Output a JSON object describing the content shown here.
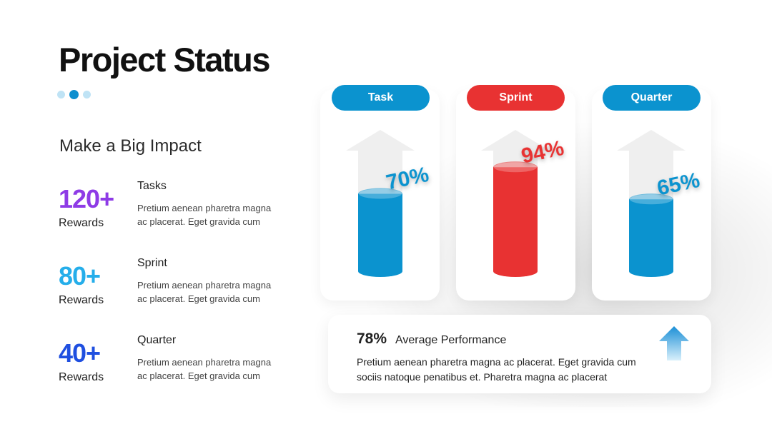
{
  "title": "Project Status",
  "subtitle": "Make a Big Impact",
  "stats": [
    {
      "value": "120+",
      "unit": "Rewards",
      "heading": "Tasks",
      "description": "Pretium aenean pharetra magna ac placerat. Eget gravida cum",
      "color": "#8e3be6"
    },
    {
      "value": "80+",
      "unit": "Rewards",
      "heading": "Sprint",
      "description": "Pretium aenean pharetra magna ac placerat. Eget gravida cum",
      "color": "#25aeea"
    },
    {
      "value": "40+",
      "unit": "Rewards",
      "heading": "Quarter",
      "description": "Pretium aenean pharetra magna ac placerat. Eget gravida cum",
      "color": "#1f4fe0"
    }
  ],
  "chart_data": {
    "type": "bar",
    "categories": [
      "Task",
      "Sprint",
      "Quarter"
    ],
    "values": [
      70,
      94,
      65
    ],
    "labels": [
      "70%",
      "94%",
      "65%"
    ],
    "colors": [
      "#0b93cf",
      "#e83232",
      "#0b93cf"
    ]
  },
  "performance": {
    "percent": "78%",
    "label": "Average Performance",
    "text": "Pretium aenean pharetra magna ac placerat. Eget gravida cum sociis natoque penatibus et. Pharetra magna ac placerat"
  },
  "colors": {
    "accent": "#0e8fcf",
    "red": "#e83232"
  },
  "icons": {
    "progress": "arrow-up-icon"
  }
}
